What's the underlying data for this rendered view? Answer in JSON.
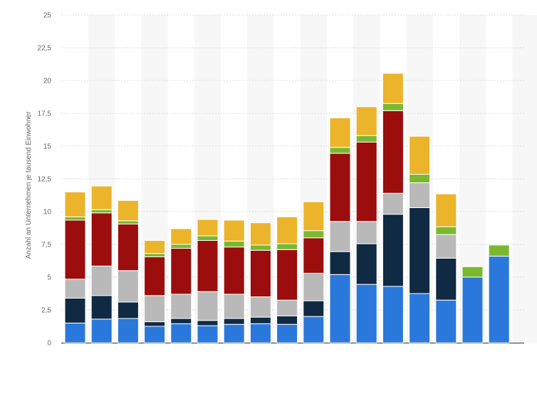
{
  "chart_data": {
    "type": "bar",
    "stacked": true,
    "title": "",
    "xlabel": "",
    "ylabel": "Anzahl an Unternehmen je tausend Einwohner",
    "ylim": [
      0,
      25
    ],
    "y_ticks": [
      "0",
      "2,5",
      "5",
      "7,5",
      "10",
      "12,5",
      "15",
      "17,5",
      "20",
      "22,5",
      "25"
    ],
    "y_tick_values": [
      0,
      2.5,
      5,
      7.5,
      10,
      12.5,
      15,
      17.5,
      20,
      22.5,
      25
    ],
    "grid": true,
    "legend": "none",
    "categories": [
      "",
      "",
      "",
      "",
      "",
      "",
      "",
      "",
      "",
      "",
      "",
      "",
      "",
      "",
      "",
      "",
      "",
      ""
    ],
    "series": [
      {
        "color": "#2a78dc",
        "values": [
          1.5,
          1.8,
          1.85,
          1.25,
          1.45,
          1.3,
          1.4,
          1.45,
          1.4,
          2.0,
          5.2,
          4.45,
          4.3,
          3.75,
          3.25,
          5.0,
          6.6,
          0
        ]
      },
      {
        "color": "#102a43",
        "values": [
          1.9,
          1.8,
          1.25,
          0.35,
          0.4,
          0.4,
          0.45,
          0.5,
          0.65,
          1.2,
          1.75,
          3.1,
          5.5,
          6.55,
          3.2,
          0,
          0,
          0
        ]
      },
      {
        "color": "#b9b9b9",
        "values": [
          1.45,
          2.25,
          2.4,
          2.0,
          1.85,
          2.2,
          1.85,
          1.55,
          1.2,
          2.1,
          2.3,
          1.7,
          1.6,
          1.9,
          1.8,
          0,
          0,
          0
        ]
      },
      {
        "color": "#9c0d0d",
        "values": [
          4.5,
          4.05,
          3.55,
          2.95,
          3.5,
          3.9,
          3.6,
          3.55,
          3.85,
          2.7,
          5.2,
          6.05,
          6.3,
          0,
          0,
          0,
          0,
          0
        ]
      },
      {
        "color": "#7cb82f",
        "values": [
          0.25,
          0.25,
          0.25,
          0.25,
          0.3,
          0.35,
          0.45,
          0.4,
          0.45,
          0.55,
          0.45,
          0.5,
          0.55,
          0.65,
          0.6,
          0.8,
          0.85,
          0
        ]
      },
      {
        "color": "#ebb42a",
        "values": [
          1.9,
          1.8,
          1.55,
          1.0,
          1.2,
          1.25,
          1.6,
          1.7,
          2.05,
          2.2,
          2.25,
          2.2,
          2.3,
          2.9,
          2.5,
          0,
          0,
          0
        ]
      }
    ]
  }
}
